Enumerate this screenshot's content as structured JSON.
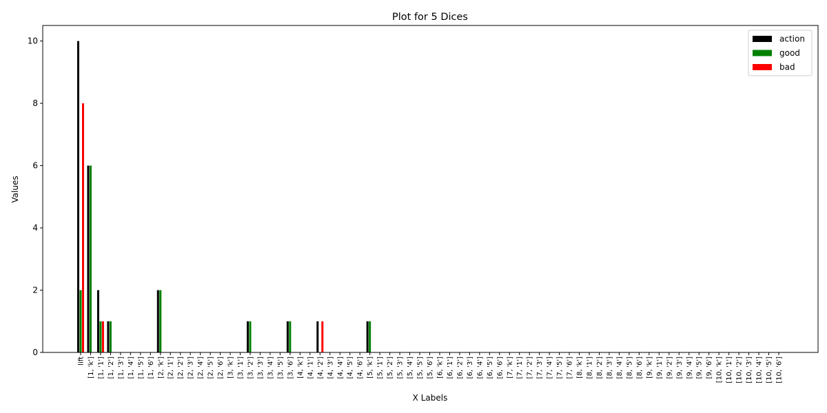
{
  "chart_data": {
    "type": "bar",
    "title": "Plot for 5 Dices",
    "xlabel": "X Labels",
    "ylabel": "Values",
    "categories": [
      "lift",
      "[1, 'k']",
      "[1, '1']",
      "[1, '2']",
      "[1, '3']",
      "[1, '4']",
      "[1, '5']",
      "[1, '6']",
      "[2, 'k']",
      "[2, '1']",
      "[2, '2']",
      "[2, '3']",
      "[2, '4']",
      "[2, '5']",
      "[2, '6']",
      "[3, 'k']",
      "[3, '1']",
      "[3, '2']",
      "[3, '3']",
      "[3, '4']",
      "[3, '5']",
      "[3, '6']",
      "[4, 'k']",
      "[4, '1']",
      "[4, '2']",
      "[4, '3']",
      "[4, '4']",
      "[4, '5']",
      "[4, '6']",
      "[5, 'k']",
      "[5, '1']",
      "[5, '2']",
      "[5, '3']",
      "[5, '4']",
      "[5, '5']",
      "[5, '6']",
      "[6, 'k']",
      "[6, '1']",
      "[6, '2']",
      "[6, '3']",
      "[6, '4']",
      "[6, '5']",
      "[6, '6']",
      "[7, 'k']",
      "[7, '1']",
      "[7, '2']",
      "[7, '3']",
      "[7, '4']",
      "[7, '5']",
      "[7, '6']",
      "[8, 'k']",
      "[8, '1']",
      "[8, '2']",
      "[8, '3']",
      "[8, '4']",
      "[8, '5']",
      "[8, '6']",
      "[9, 'k']",
      "[9, '1']",
      "[9, '2']",
      "[9, '3']",
      "[9, '4']",
      "[9, '5']",
      "[9, '6']",
      "[10, 'k']",
      "[10, '1']",
      "[10, '2']",
      "[10, '3']",
      "[10, '4']",
      "[10, '5']",
      "[10, '6']"
    ],
    "series": [
      {
        "name": "action",
        "color": "#000000",
        "values": [
          10,
          6,
          2,
          1,
          0,
          0,
          0,
          0,
          2,
          0,
          0,
          0,
          0,
          0,
          0,
          0,
          0,
          1,
          0,
          0,
          0,
          1,
          0,
          0,
          1,
          0,
          0,
          0,
          0,
          1,
          0,
          0,
          0,
          0,
          0,
          0,
          0,
          0,
          0,
          0,
          0,
          0,
          0,
          0,
          0,
          0,
          0,
          0,
          0,
          0,
          0,
          0,
          0,
          0,
          0,
          0,
          0,
          0,
          0,
          0,
          0,
          0,
          0,
          0,
          0,
          0,
          0,
          0,
          0,
          0,
          0
        ]
      },
      {
        "name": "good",
        "color": "#008000",
        "values": [
          2,
          6,
          1,
          1,
          0,
          0,
          0,
          0,
          2,
          0,
          0,
          0,
          0,
          0,
          0,
          0,
          0,
          1,
          0,
          0,
          0,
          1,
          0,
          0,
          0,
          0,
          0,
          0,
          0,
          1,
          0,
          0,
          0,
          0,
          0,
          0,
          0,
          0,
          0,
          0,
          0,
          0,
          0,
          0,
          0,
          0,
          0,
          0,
          0,
          0,
          0,
          0,
          0,
          0,
          0,
          0,
          0,
          0,
          0,
          0,
          0,
          0,
          0,
          0,
          0,
          0,
          0,
          0,
          0,
          0,
          0
        ]
      },
      {
        "name": "bad",
        "color": "#ff0000",
        "values": [
          8,
          0,
          1,
          0,
          0,
          0,
          0,
          0,
          0,
          0,
          0,
          0,
          0,
          0,
          0,
          0,
          0,
          0,
          0,
          0,
          0,
          0,
          0,
          0,
          1,
          0,
          0,
          0,
          0,
          0,
          0,
          0,
          0,
          0,
          0,
          0,
          0,
          0,
          0,
          0,
          0,
          0,
          0,
          0,
          0,
          0,
          0,
          0,
          0,
          0,
          0,
          0,
          0,
          0,
          0,
          0,
          0,
          0,
          0,
          0,
          0,
          0,
          0,
          0,
          0,
          0,
          0,
          0,
          0,
          0,
          0
        ]
      }
    ],
    "ylim": [
      0,
      10.5
    ],
    "yticks": [
      0,
      2,
      4,
      6,
      8,
      10
    ],
    "legend": "upper right"
  }
}
